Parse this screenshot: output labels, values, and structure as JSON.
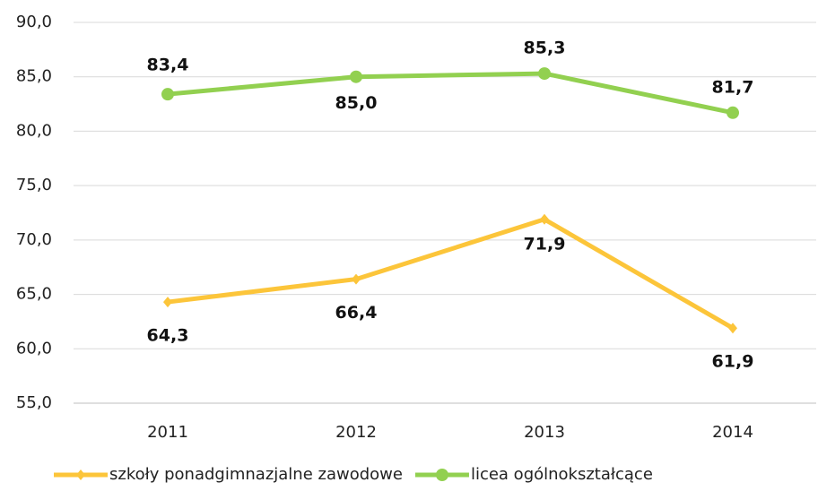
{
  "chart_data": {
    "type": "line",
    "categories": [
      "2011",
      "2012",
      "2013",
      "2014"
    ],
    "series": [
      {
        "name": "szkoły ponadgimnazjalne zawodowe",
        "color": "#fcc53a",
        "values": [
          64.3,
          66.4,
          71.9,
          61.9
        ],
        "value_labels": [
          "64,3",
          "66,4",
          "71,9",
          "61,9"
        ]
      },
      {
        "name": "licea ogólnokształcące",
        "color": "#92d050",
        "values": [
          83.4,
          85.0,
          85.3,
          81.7
        ],
        "value_labels": [
          "83,4",
          "85,0",
          "85,3",
          "81,7"
        ]
      }
    ],
    "ylim": [
      55,
      90
    ],
    "yticks": [
      {
        "value": 55,
        "label": "55,0"
      },
      {
        "value": 60,
        "label": "60,0"
      },
      {
        "value": 65,
        "label": "65,0"
      },
      {
        "value": 70,
        "label": "70,0"
      },
      {
        "value": 75,
        "label": "75,0"
      },
      {
        "value": 80,
        "label": "80,0"
      },
      {
        "value": 85,
        "label": "85,0"
      },
      {
        "value": 90,
        "label": "90,0"
      }
    ],
    "grid": true,
    "legend": "bottom"
  }
}
